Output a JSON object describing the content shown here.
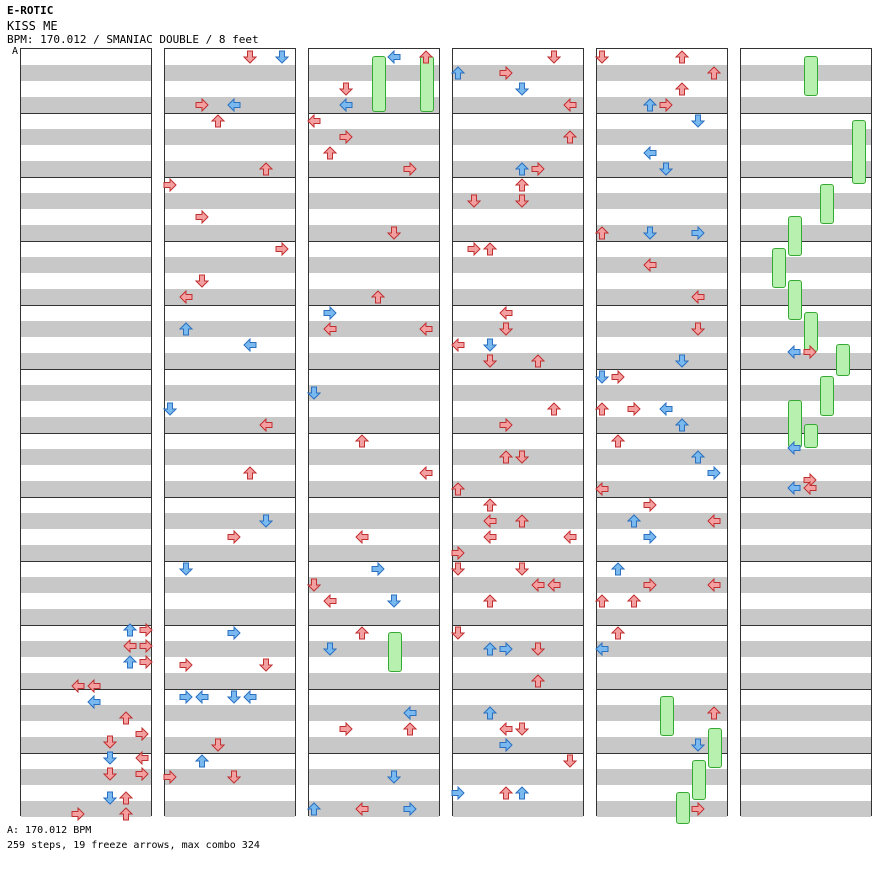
{
  "header": {
    "artist": "E-ROTIC",
    "title": "KISS ME",
    "info": "BPM: 170.012 / SMANIAC DOUBLE / 8 feet",
    "marker": "A"
  },
  "footer": {
    "bpm_line": "A: 170.012 BPM",
    "stats": "259 steps, 19 freeze arrows, max combo 324"
  },
  "colors": {
    "red_arrow": "#f4a0a0",
    "blue_arrow": "#7ab8f0",
    "freeze": "#b8f0b0",
    "band": "#c8c8c8"
  },
  "columns": [
    {
      "notes": [
        [
          "r",
          126,
          "d"
        ],
        [
          "r",
          142,
          "u"
        ],
        [
          "r",
          142,
          "d"
        ],
        [
          "r",
          126,
          "u"
        ],
        [
          "b",
          126,
          "d"
        ],
        [
          "r",
          142,
          "d"
        ],
        [
          "r",
          142,
          "d"
        ],
        [
          "b",
          78,
          "l"
        ],
        [
          "r",
          94,
          "l"
        ],
        [
          "b",
          94,
          "l"
        ],
        [
          "b",
          126,
          "u"
        ],
        [
          "b",
          142,
          "u"
        ],
        [
          "r",
          110,
          "d"
        ],
        [
          "r",
          110,
          "d"
        ],
        [
          "r",
          142,
          "d"
        ],
        [
          "r",
          110,
          "d"
        ],
        [
          "r",
          142,
          "d"
        ],
        [
          "b",
          110,
          "d"
        ],
        [
          "r",
          126,
          "u"
        ],
        [
          "r",
          126,
          "u"
        ],
        [
          "b",
          78,
          "l"
        ]
      ],
      "note_rows": [
        584,
        584,
        600,
        600,
        616,
        600,
        616,
        640,
        640,
        656,
        672,
        688,
        696,
        712,
        712,
        728,
        728,
        752,
        752,
        768,
        768
      ],
      "freezes": []
    },
    {
      "notes": [],
      "freezes": []
    },
    {
      "notes": [],
      "freezes": []
    },
    {
      "notes": [],
      "freezes": []
    },
    {
      "notes": [],
      "freezes": []
    },
    {
      "notes": [],
      "freezes": []
    }
  ]
}
